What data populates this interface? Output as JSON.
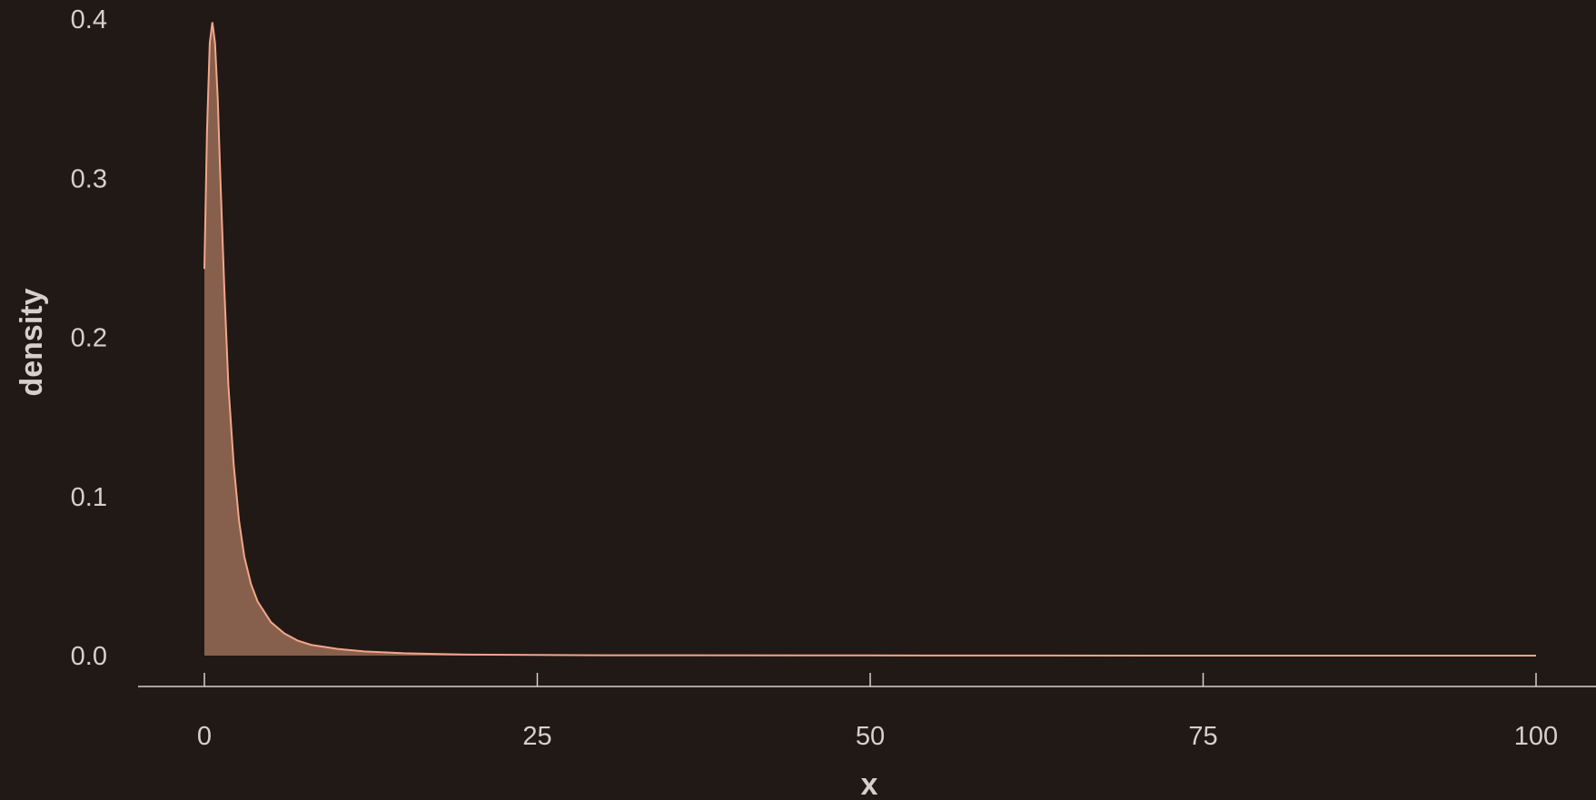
{
  "chart_data": {
    "type": "area",
    "title": "",
    "xlabel": "x",
    "ylabel": "density",
    "xlim": [
      0,
      100
    ],
    "ylim": [
      0,
      0.4
    ],
    "x_ticks": [
      {
        "value": 0,
        "label": "0"
      },
      {
        "value": 25,
        "label": "25"
      },
      {
        "value": 50,
        "label": "50"
      },
      {
        "value": 75,
        "label": "75"
      },
      {
        "value": 100,
        "label": "100"
      }
    ],
    "y_ticks": [
      {
        "value": 0,
        "label": "0.0"
      },
      {
        "value": 0.1,
        "label": "0.1"
      },
      {
        "value": 0.2,
        "label": "0.2"
      },
      {
        "value": 0.3,
        "label": "0.3"
      },
      {
        "value": 0.4,
        "label": "0.4"
      }
    ],
    "grid": false,
    "legend": "none",
    "colors": {
      "background": "#211915",
      "line": "#f3a58c",
      "fill": "#86604c",
      "axis": "#d6d0ca"
    },
    "series": [
      {
        "x": [
          0,
          0.2,
          0.4,
          0.6,
          0.8,
          1.0,
          1.2,
          1.5,
          1.8,
          2.2,
          2.6,
          3.0,
          3.5,
          4.0,
          5.0,
          6.0,
          7.0,
          8.0,
          10.0,
          12.0,
          15.0,
          18.0,
          20.0,
          30.0,
          50.0,
          75.0,
          100.0
        ],
        "y": [
          0.243,
          0.33,
          0.385,
          0.398,
          0.385,
          0.35,
          0.3,
          0.23,
          0.17,
          0.12,
          0.085,
          0.062,
          0.045,
          0.034,
          0.021,
          0.014,
          0.0095,
          0.0068,
          0.0042,
          0.0026,
          0.0015,
          0.0009,
          0.0006,
          0.0002,
          0.0001,
          0.0,
          0.0
        ]
      }
    ]
  }
}
